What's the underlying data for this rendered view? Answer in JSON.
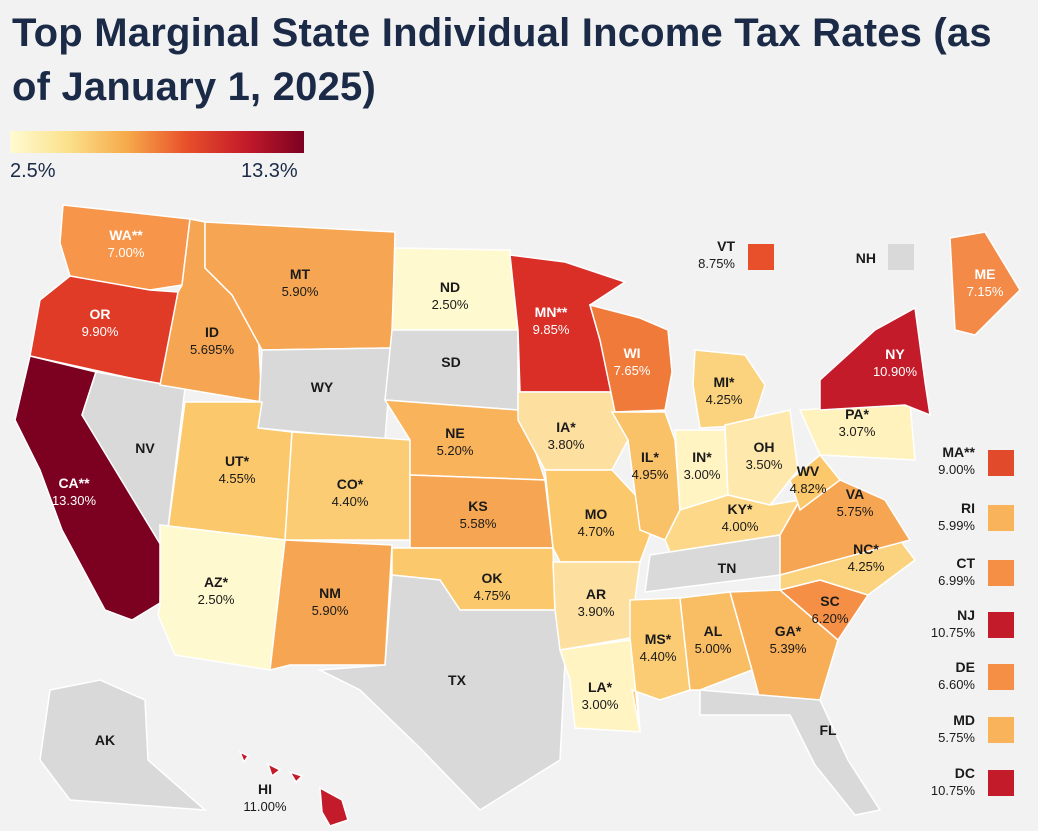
{
  "title": "Top Marginal State Individual Income Tax Rates (as of January 1, 2025)",
  "legend": {
    "min": "2.5%",
    "max": "13.3%",
    "min_value": 2.5,
    "max_value": 13.3
  },
  "colors": {
    "no_tax": "#d9d9d9",
    "scale": [
      "#fffbd2",
      "#fbe08a",
      "#f6a94a",
      "#e8502b",
      "#c41b2a",
      "#7c0121"
    ]
  },
  "states": [
    {
      "abbr": "WA**",
      "rate": "7.00%",
      "value": 7.0,
      "color": "#f7954a"
    },
    {
      "abbr": "OR",
      "rate": "9.90%",
      "value": 9.9,
      "color": "#df3b26"
    },
    {
      "abbr": "CA**",
      "rate": "13.30%",
      "value": 13.3,
      "color": "#7c0121"
    },
    {
      "abbr": "NV",
      "rate": "",
      "value": null,
      "color": "#d9d9d9"
    },
    {
      "abbr": "ID",
      "rate": "5.695%",
      "value": 5.695,
      "color": "#f6a652"
    },
    {
      "abbr": "MT",
      "rate": "5.90%",
      "value": 5.9,
      "color": "#f6a652"
    },
    {
      "abbr": "WY",
      "rate": "",
      "value": null,
      "color": "#d9d9d9"
    },
    {
      "abbr": "UT*",
      "rate": "4.55%",
      "value": 4.55,
      "color": "#fbc86b"
    },
    {
      "abbr": "AZ*",
      "rate": "2.50%",
      "value": 2.5,
      "color": "#fff9cf"
    },
    {
      "abbr": "CO*",
      "rate": "4.40%",
      "value": 4.4,
      "color": "#fbcc73"
    },
    {
      "abbr": "NM",
      "rate": "5.90%",
      "value": 5.9,
      "color": "#f6a652"
    },
    {
      "abbr": "ND",
      "rate": "2.50%",
      "value": 2.5,
      "color": "#fff9cf"
    },
    {
      "abbr": "SD",
      "rate": "",
      "value": null,
      "color": "#d9d9d9"
    },
    {
      "abbr": "NE",
      "rate": "5.20%",
      "value": 5.2,
      "color": "#f8b35b"
    },
    {
      "abbr": "KS",
      "rate": "5.58%",
      "value": 5.58,
      "color": "#f6a652"
    },
    {
      "abbr": "OK",
      "rate": "4.75%",
      "value": 4.75,
      "color": "#fbc86b"
    },
    {
      "abbr": "TX",
      "rate": "",
      "value": null,
      "color": "#d9d9d9"
    },
    {
      "abbr": "MN**",
      "rate": "9.85%",
      "value": 9.85,
      "color": "#d92f27"
    },
    {
      "abbr": "IA*",
      "rate": "3.80%",
      "value": 3.8,
      "color": "#fde0a0"
    },
    {
      "abbr": "MO",
      "rate": "4.70%",
      "value": 4.7,
      "color": "#fbc86b"
    },
    {
      "abbr": "AR",
      "rate": "3.90%",
      "value": 3.9,
      "color": "#fde0a0"
    },
    {
      "abbr": "LA*",
      "rate": "3.00%",
      "value": 3.0,
      "color": "#fff4c2"
    },
    {
      "abbr": "WI",
      "rate": "7.65%",
      "value": 7.65,
      "color": "#f07a3a"
    },
    {
      "abbr": "IL*",
      "rate": "4.95%",
      "value": 4.95,
      "color": "#f9c168"
    },
    {
      "abbr": "MI*",
      "rate": "4.25%",
      "value": 4.25,
      "color": "#fbd27d"
    },
    {
      "abbr": "IN*",
      "rate": "3.00%",
      "value": 3.0,
      "color": "#fff4c2"
    },
    {
      "abbr": "OH",
      "rate": "3.50%",
      "value": 3.5,
      "color": "#fee8ac"
    },
    {
      "abbr": "KY*",
      "rate": "4.00%",
      "value": 4.0,
      "color": "#fcd888"
    },
    {
      "abbr": "TN",
      "rate": "",
      "value": null,
      "color": "#d9d9d9"
    },
    {
      "abbr": "MS*",
      "rate": "4.40%",
      "value": 4.4,
      "color": "#fbcc73"
    },
    {
      "abbr": "AL",
      "rate": "5.00%",
      "value": 5.0,
      "color": "#f9bd63"
    },
    {
      "abbr": "GA*",
      "rate": "5.39%",
      "value": 5.39,
      "color": "#f8ae57"
    },
    {
      "abbr": "FL",
      "rate": "",
      "value": null,
      "color": "#d9d9d9"
    },
    {
      "abbr": "SC",
      "rate": "6.20%",
      "value": 6.2,
      "color": "#f58f45"
    },
    {
      "abbr": "NC*",
      "rate": "4.25%",
      "value": 4.25,
      "color": "#fbd27d"
    },
    {
      "abbr": "VA",
      "rate": "5.75%",
      "value": 5.75,
      "color": "#f6a652"
    },
    {
      "abbr": "WV",
      "rate": "4.82%",
      "value": 4.82,
      "color": "#fbc86b"
    },
    {
      "abbr": "PA*",
      "rate": "3.07%",
      "value": 3.07,
      "color": "#fff2bd"
    },
    {
      "abbr": "NY",
      "rate": "10.90%",
      "value": 10.9,
      "color": "#c41b2a"
    },
    {
      "abbr": "ME",
      "rate": "7.15%",
      "value": 7.15,
      "color": "#f48a48"
    },
    {
      "abbr": "AK",
      "rate": "",
      "value": null,
      "color": "#d9d9d9"
    },
    {
      "abbr": "HI",
      "rate": "11.00%",
      "value": 11.0,
      "color": "#c41b2a"
    }
  ],
  "sidebar_states": [
    {
      "abbr": "VT",
      "rate": "8.75%",
      "value": 8.75,
      "color": "#e8502b"
    },
    {
      "abbr": "NH",
      "rate": "",
      "value": null,
      "color": "#d9d9d9"
    },
    {
      "abbr": "MA**",
      "rate": "9.00%",
      "value": 9.0,
      "color": "#e24a2c"
    },
    {
      "abbr": "RI",
      "rate": "5.99%",
      "value": 5.99,
      "color": "#f8b35b"
    },
    {
      "abbr": "CT",
      "rate": "6.99%",
      "value": 6.99,
      "color": "#f58f45"
    },
    {
      "abbr": "NJ",
      "rate": "10.75%",
      "value": 10.75,
      "color": "#c41b2a"
    },
    {
      "abbr": "DE",
      "rate": "6.60%",
      "value": 6.6,
      "color": "#f58f45"
    },
    {
      "abbr": "MD",
      "rate": "5.75%",
      "value": 5.75,
      "color": "#f8b35b"
    },
    {
      "abbr": "DC",
      "rate": "10.75%",
      "value": 10.75,
      "color": "#c41b2a"
    }
  ]
}
